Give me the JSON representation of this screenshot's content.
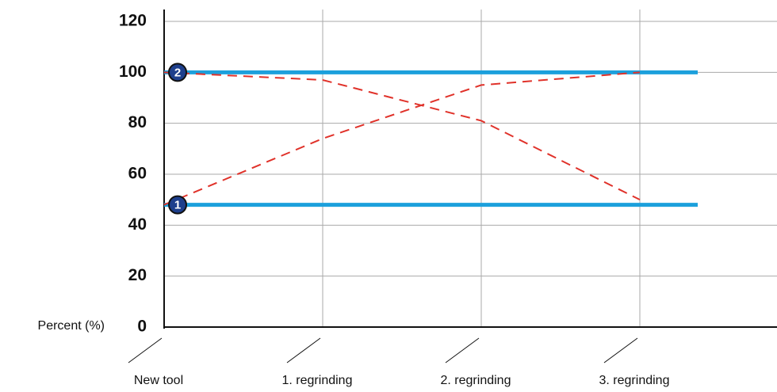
{
  "chart_data": {
    "type": "line",
    "y_label": "Percent (%)",
    "categories": [
      "New tool",
      "1. regrinding",
      "2. regrinding",
      "3. regrinding"
    ],
    "series": [
      {
        "name": "1",
        "color": "#1ca0dc",
        "style": "solid",
        "values": [
          48,
          48,
          48,
          48
        ]
      },
      {
        "name": "2",
        "color": "#1ca0dc",
        "style": "solid",
        "values": [
          100,
          100,
          100,
          100
        ]
      },
      {
        "color": "#e0322a",
        "style": "dashed",
        "values": [
          48,
          74,
          95,
          100
        ]
      },
      {
        "color": "#e0322a",
        "style": "dashed",
        "values": [
          100,
          97,
          81,
          50
        ]
      }
    ],
    "ylim": [
      0,
      120
    ],
    "yticks": [
      0,
      20,
      40,
      60,
      80,
      100,
      120
    ],
    "grid": true
  }
}
